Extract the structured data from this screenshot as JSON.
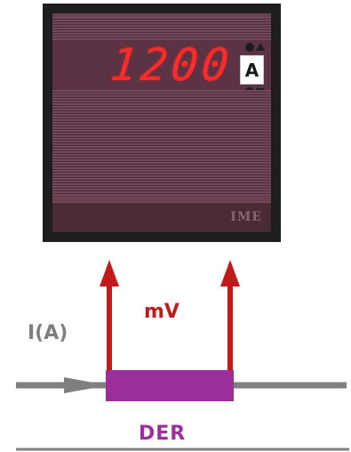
{
  "meter": {
    "reading": "1200",
    "unit": "A",
    "brand": "IME"
  },
  "schematic": {
    "current_label": "I(A)",
    "voltage_label": "mV",
    "shunt_label": "DER"
  },
  "colors": {
    "bezel": "#1e1e1e",
    "face": "#6a4150",
    "digits": "#ff2a2a",
    "wire": "#7f7f7f",
    "arrow": "#c11a1a",
    "shunt": "#9b2e9b"
  }
}
